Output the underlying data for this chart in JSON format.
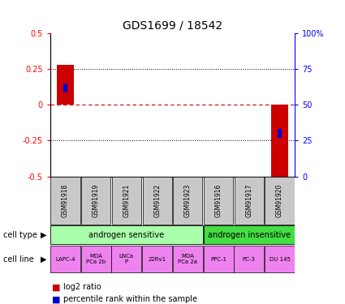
{
  "title": "GDS1699 / 18542",
  "samples": [
    "GSM91918",
    "GSM91919",
    "GSM91921",
    "GSM91922",
    "GSM91923",
    "GSM91916",
    "GSM91917",
    "GSM91920"
  ],
  "log2_ratio": [
    0.28,
    0.0,
    0.0,
    0.0,
    0.0,
    0.0,
    0.0,
    -0.5
  ],
  "percentile_rank_pct": [
    62,
    0,
    0,
    0,
    0,
    0,
    0,
    30
  ],
  "ylim": [
    -0.5,
    0.5
  ],
  "right_ytick_positions": [
    -0.5,
    -0.25,
    0.0,
    0.25,
    0.5
  ],
  "right_ytick_labels": [
    "0",
    "25",
    "50",
    "75",
    "100%"
  ],
  "left_ytick_positions": [
    -0.5,
    -0.25,
    0.0,
    0.25,
    0.5
  ],
  "left_ytick_labels": [
    "-0.5",
    "-0.25",
    "0",
    "0.25",
    "0.5"
  ],
  "cell_type_groups": [
    {
      "label": "androgen sensitive",
      "start": 0,
      "end": 5,
      "color": "#AAFFAA"
    },
    {
      "label": "androgen insensitive",
      "start": 5,
      "end": 8,
      "color": "#44DD44"
    }
  ],
  "cell_lines": [
    "LAPC-4",
    "MDA\nPCa 2b",
    "LNCa\nP",
    "22Rv1",
    "MDA\nPCa 2a",
    "PPC-1",
    "PC-3",
    "DU 145"
  ],
  "cell_line_color": "#EE82EE",
  "sample_bg_color": "#C8C8C8",
  "bar_color_log2": "#CC0000",
  "bar_color_pct": "#0000CC",
  "zero_line_color": "#CC0000",
  "grid_color": "#000000",
  "title_fontsize": 10
}
